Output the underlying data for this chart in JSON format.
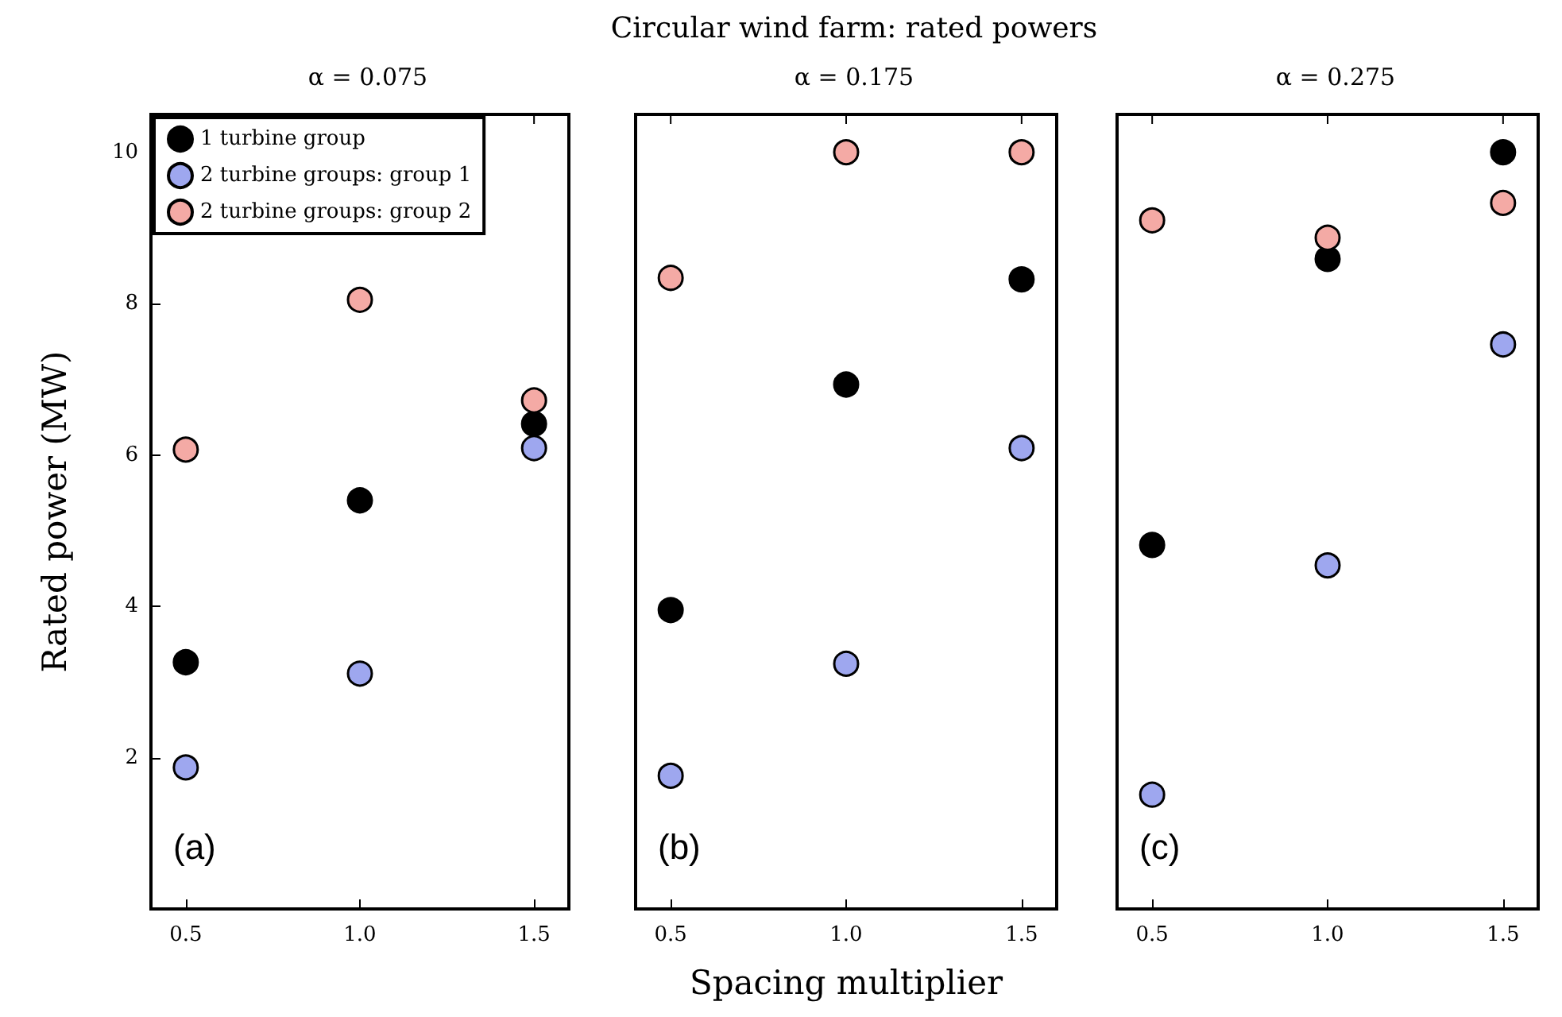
{
  "chart_data": [
    {
      "type": "scatter",
      "subtitle": "α = 0.075",
      "ylabel": "Rated power (MW)",
      "annotations": [
        "(a)"
      ],
      "x": [
        0.5,
        1.0,
        1.5
      ],
      "xlim": [
        0.4,
        1.6
      ],
      "xticks": [
        {
          "value": 0.5,
          "label": "0.5"
        },
        {
          "value": 1.0,
          "label": "1.0"
        },
        {
          "value": 1.5,
          "label": "1.5"
        }
      ],
      "ylim": [
        0,
        10.5
      ],
      "yticks": [
        2,
        4,
        6,
        8,
        10
      ],
      "grid": false,
      "legend": "top left",
      "marker": "circle",
      "series": [
        {
          "name": "1 turbine group",
          "color": "#000000",
          "values": [
            3.26,
            5.4,
            6.41
          ]
        },
        {
          "name": "2 turbine groups: group 1",
          "color": "#9ea7ef",
          "values": [
            1.87,
            3.11,
            6.09
          ]
        },
        {
          "name": "2 turbine groups: group 2",
          "color": "#f4aaa5",
          "values": [
            6.07,
            8.05,
            6.72
          ]
        }
      ]
    },
    {
      "type": "scatter",
      "title": "Circular wind farm: rated powers",
      "subtitle": "α = 0.175",
      "xlabel": "Spacing multiplier",
      "annotations": [
        "(b)"
      ],
      "x": [
        0.5,
        1.0,
        1.5
      ],
      "xlim": [
        0.4,
        1.6
      ],
      "xticks": [
        {
          "value": 0.5,
          "label": "0.5"
        },
        {
          "value": 1.0,
          "label": "1.0"
        },
        {
          "value": 1.5,
          "label": "1.5"
        }
      ],
      "ylim": [
        0,
        10.5
      ],
      "tick_labels": "x",
      "grid": false,
      "marker": "circle",
      "series": [
        {
          "color": "#000000",
          "values": [
            3.95,
            6.93,
            8.32
          ]
        },
        {
          "color": "#9ea7ef",
          "values": [
            1.76,
            3.24,
            6.09
          ]
        },
        {
          "color": "#f4aaa5",
          "values": [
            8.34,
            10.0,
            10.0
          ]
        }
      ]
    },
    {
      "type": "scatter",
      "subtitle": "α = 0.275",
      "annotations": [
        "(c)"
      ],
      "x": [
        0.5,
        1.0,
        1.5
      ],
      "xlim": [
        0.4,
        1.6
      ],
      "xticks": [
        {
          "value": 0.5,
          "label": "0.5"
        },
        {
          "value": 1.0,
          "label": "1.0"
        },
        {
          "value": 1.5,
          "label": "1.5"
        }
      ],
      "ylim": [
        0,
        10.5
      ],
      "tick_labels": "x",
      "grid": false,
      "marker": "circle",
      "series": [
        {
          "color": "#000000",
          "values": [
            4.81,
            8.59,
            10.0
          ]
        },
        {
          "color": "#9ea7ef",
          "values": [
            1.51,
            4.54,
            7.46
          ]
        },
        {
          "color": "#f4aaa5",
          "values": [
            9.1,
            8.87,
            9.33
          ]
        }
      ]
    }
  ]
}
